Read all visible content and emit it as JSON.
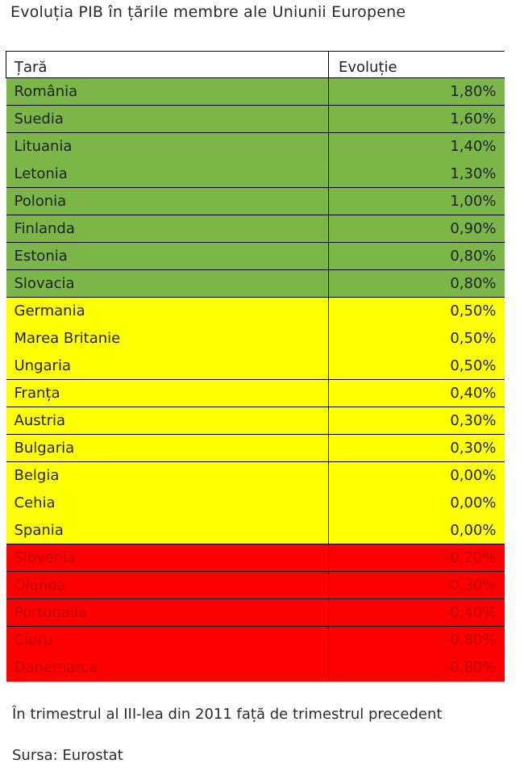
{
  "title": "Evoluția PIB în țările membre ale Uniunii Europene",
  "table": {
    "headers": [
      "Țară",
      "Evoluție"
    ],
    "rows": [
      {
        "country": "România",
        "value": "1,80%",
        "group": "green",
        "line": true
      },
      {
        "country": "Suedia",
        "value": "1,60%",
        "group": "green",
        "line": true
      },
      {
        "country": "Lituania",
        "value": "1,40%",
        "group": "green",
        "line": false
      },
      {
        "country": "Letonia",
        "value": "1,30%",
        "group": "green",
        "line": true
      },
      {
        "country": "Polonia",
        "value": "1,00%",
        "group": "green",
        "line": true
      },
      {
        "country": "Finlanda",
        "value": "0,90%",
        "group": "green",
        "line": true
      },
      {
        "country": "Estonia",
        "value": "0,80%",
        "group": "green",
        "line": true
      },
      {
        "country": "Slovacia",
        "value": "0,80%",
        "group": "green",
        "line": true
      },
      {
        "country": "Germania",
        "value": "0,50%",
        "group": "yellow",
        "line": false
      },
      {
        "country": "Marea Britanie",
        "value": "0,50%",
        "group": "yellow",
        "line": false
      },
      {
        "country": "Ungaria",
        "value": "0,50%",
        "group": "yellow",
        "line": true
      },
      {
        "country": "Franța",
        "value": "0,40%",
        "group": "yellow",
        "line": true
      },
      {
        "country": "Austria",
        "value": "0,30%",
        "group": "yellow",
        "line": true
      },
      {
        "country": "Bulgaria",
        "value": "0,30%",
        "group": "yellow",
        "line": true
      },
      {
        "country": "Belgia",
        "value": "0,00%",
        "group": "yellow",
        "line": false
      },
      {
        "country": "Cehia",
        "value": "0,00%",
        "group": "yellow",
        "line": false
      },
      {
        "country": "Spania",
        "value": "0,00%",
        "group": "yellow",
        "line": true
      },
      {
        "country": "Slovenia",
        "value": "-0,20%",
        "group": "red",
        "line": true
      },
      {
        "country": "Olanda",
        "value": "-0,30%",
        "group": "red",
        "line": true
      },
      {
        "country": "Portugalia",
        "value": "-0,40%",
        "group": "red",
        "line": true
      },
      {
        "country": "Cipru",
        "value": "-0,80%",
        "group": "red",
        "line": false
      },
      {
        "country": "Danemarca",
        "value": "-0,80%",
        "group": "red",
        "line": false
      }
    ]
  },
  "colors": {
    "green": "#7ab648",
    "yellow": "#ffff00",
    "red": "#ff0000",
    "red_text": "#c00000"
  },
  "note": "În trimestrul al III-lea din 2011 față de trimestrul precedent",
  "source": "Sursa: Eurostat"
}
